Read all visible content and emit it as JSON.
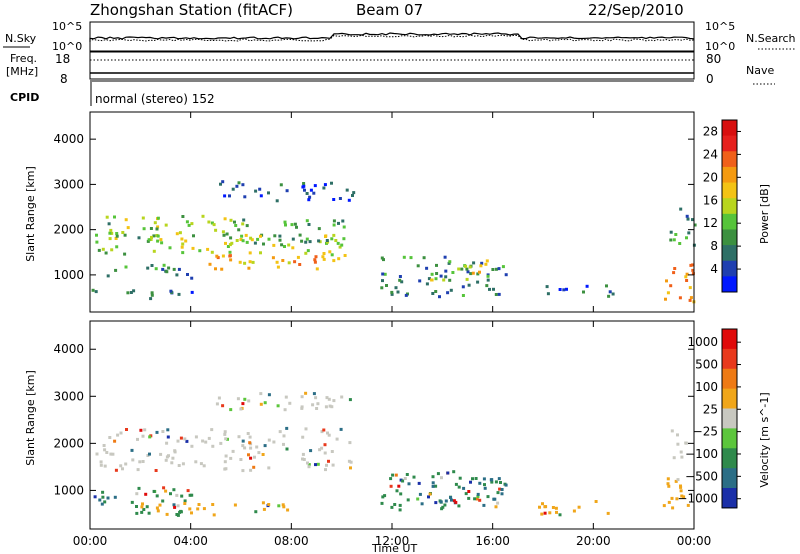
{
  "header": {
    "station": "Zhongshan Station (fitACF)",
    "beam": "Beam 07",
    "date": "22/Sep/2010"
  },
  "strips": {
    "nsky_label": "N.Sky",
    "nsky_ticks": [
      "10^5",
      "10^0"
    ],
    "nsearch_label": "N.Search",
    "nsearch_ticks": [
      "10^5",
      "10^0"
    ],
    "freq_label_1": "Freq.",
    "freq_label_2": "[MHz]",
    "freq_ticks": [
      "18",
      "8"
    ],
    "nave_label": "Nave",
    "nave_ticks": [
      "80",
      "0"
    ],
    "cpid_label": "CPID",
    "cpid_text": "normal (stereo) 152"
  },
  "chart_data": [
    {
      "type": "heatmap",
      "name": "power-panel",
      "ylabel": "Slant Range [km]",
      "xlabel": "Time UT",
      "y_ticks": [
        1000,
        2000,
        3000,
        4000
      ],
      "ylim": [
        180,
        4600
      ],
      "xlim": [
        0,
        24
      ],
      "x_ticks": [
        "00:00",
        "04:00",
        "08:00",
        "12:00",
        "16:00",
        "20:00",
        "00:00"
      ],
      "colorbar": {
        "label": "Power [dB]",
        "ticks": [
          4,
          8,
          12,
          16,
          20,
          24,
          28
        ],
        "range": [
          0,
          30
        ],
        "colors": [
          "#0018ff",
          "#1f3fb0",
          "#2e6f66",
          "#3c9040",
          "#56c43a",
          "#b8d51e",
          "#f3c314",
          "#f49a10",
          "#f0601a",
          "#e6201d",
          "#d80f0f"
        ]
      },
      "regions": [
        {
          "t": [
            0.2,
            10.5
          ],
          "r": [
            1450,
            1950
          ],
          "level": 14
        },
        {
          "t": [
            0.0,
            6.0
          ],
          "r": [
            1850,
            2350
          ],
          "level": 12
        },
        {
          "t": [
            6.0,
            10.2
          ],
          "r": [
            1700,
            2250
          ],
          "level": 10
        },
        {
          "t": [
            4.0,
            10.0
          ],
          "r": [
            1150,
            1500
          ],
          "level": 20
        },
        {
          "t": [
            0.2,
            4.0
          ],
          "r": [
            950,
            1250
          ],
          "level": 8
        },
        {
          "t": [
            5.0,
            10.5
          ],
          "r": [
            2650,
            3100
          ],
          "level": 4
        },
        {
          "t": [
            11.5,
            16.5
          ],
          "r": [
            550,
            1450
          ],
          "level": 7
        },
        {
          "t": [
            13.5,
            15.8
          ],
          "r": [
            900,
            1400
          ],
          "level": 16
        },
        {
          "t": [
            18.0,
            21.0
          ],
          "r": [
            550,
            800
          ],
          "level": 5
        },
        {
          "t": [
            22.7,
            24.0
          ],
          "r": [
            400,
            1400
          ],
          "level": 22
        },
        {
          "t": [
            23.0,
            24.0
          ],
          "r": [
            1600,
            2500
          ],
          "level": 9
        },
        {
          "t": [
            0.0,
            4.5
          ],
          "r": [
            500,
            700
          ],
          "level": 6
        }
      ]
    },
    {
      "type": "heatmap",
      "name": "velocity-panel",
      "ylabel": "Slant Range [km]",
      "xlabel": "Time UT",
      "y_ticks": [
        1000,
        2000,
        3000,
        4000
      ],
      "ylim": [
        180,
        4600
      ],
      "xlim": [
        0,
        24
      ],
      "x_ticks": [
        "00:00",
        "04:00",
        "08:00",
        "12:00",
        "16:00",
        "20:00",
        "00:00"
      ],
      "colorbar": {
        "label": "Velocity [m s^-1]",
        "ticks": [
          "1000",
          "500",
          "100",
          "25",
          "-25",
          "-100",
          "-500",
          "-1000"
        ],
        "colors": [
          "#1a2fa8",
          "#2b6e86",
          "#2f8a4c",
          "#5cc63c",
          "#c8c8c0",
          "#f0a61a",
          "#ee7a14",
          "#e8391c",
          "#e00a0a"
        ]
      },
      "regions": [
        {
          "t": [
            0.2,
            10.5
          ],
          "r": [
            1450,
            2350
          ],
          "level": 25
        },
        {
          "t": [
            5.0,
            10.5
          ],
          "r": [
            2650,
            3100
          ],
          "level": 25
        },
        {
          "t": [
            0.0,
            4.0
          ],
          "r": [
            500,
            1100
          ],
          "level": 100
        },
        {
          "t": [
            0.0,
            1.0
          ],
          "r": [
            600,
            950
          ],
          "level": 500
        },
        {
          "t": [
            2.0,
            8.0
          ],
          "r": [
            500,
            800
          ],
          "level": -100
        },
        {
          "t": [
            11.5,
            16.5
          ],
          "r": [
            600,
            1450
          ],
          "level": 100
        },
        {
          "t": [
            13.0,
            16.5
          ],
          "r": [
            700,
            1300
          ],
          "level": 500
        },
        {
          "t": [
            17.5,
            21.0
          ],
          "r": [
            500,
            800
          ],
          "level": -100
        },
        {
          "t": [
            22.7,
            24.0
          ],
          "r": [
            400,
            1300
          ],
          "level": -100
        },
        {
          "t": [
            23.0,
            24.0
          ],
          "r": [
            1700,
            2300
          ],
          "level": 25
        }
      ]
    }
  ]
}
